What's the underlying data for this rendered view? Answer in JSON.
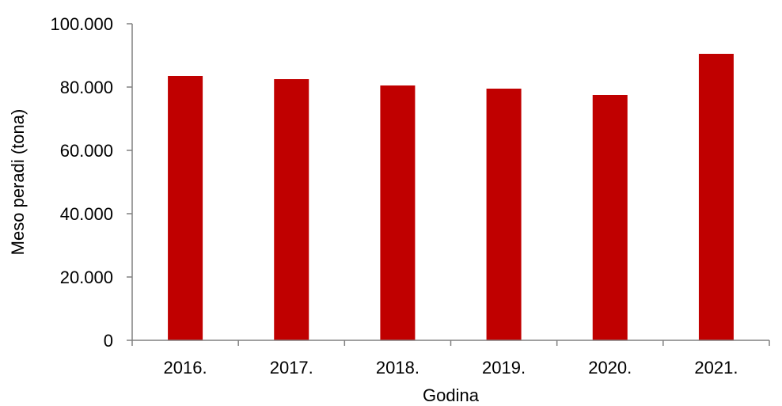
{
  "chart_data": {
    "type": "bar",
    "title": "",
    "xlabel": "Godina",
    "ylabel": "Meso peradi (tona)",
    "categories": [
      "2016.",
      "2017.",
      "2018.",
      "2019.",
      "2020.",
      "2021."
    ],
    "values": [
      83500,
      82500,
      80500,
      79500,
      77500,
      90500
    ],
    "ylim": [
      0,
      100000
    ],
    "yticks": [
      0,
      20000,
      40000,
      60000,
      80000,
      100000
    ],
    "ytick_labels": [
      "0",
      "20.000",
      "40.000",
      "60.000",
      "80.000",
      "100.000"
    ],
    "grid": false,
    "legend": "none",
    "bar_color": "#c00000",
    "axis_color": "#808080"
  }
}
